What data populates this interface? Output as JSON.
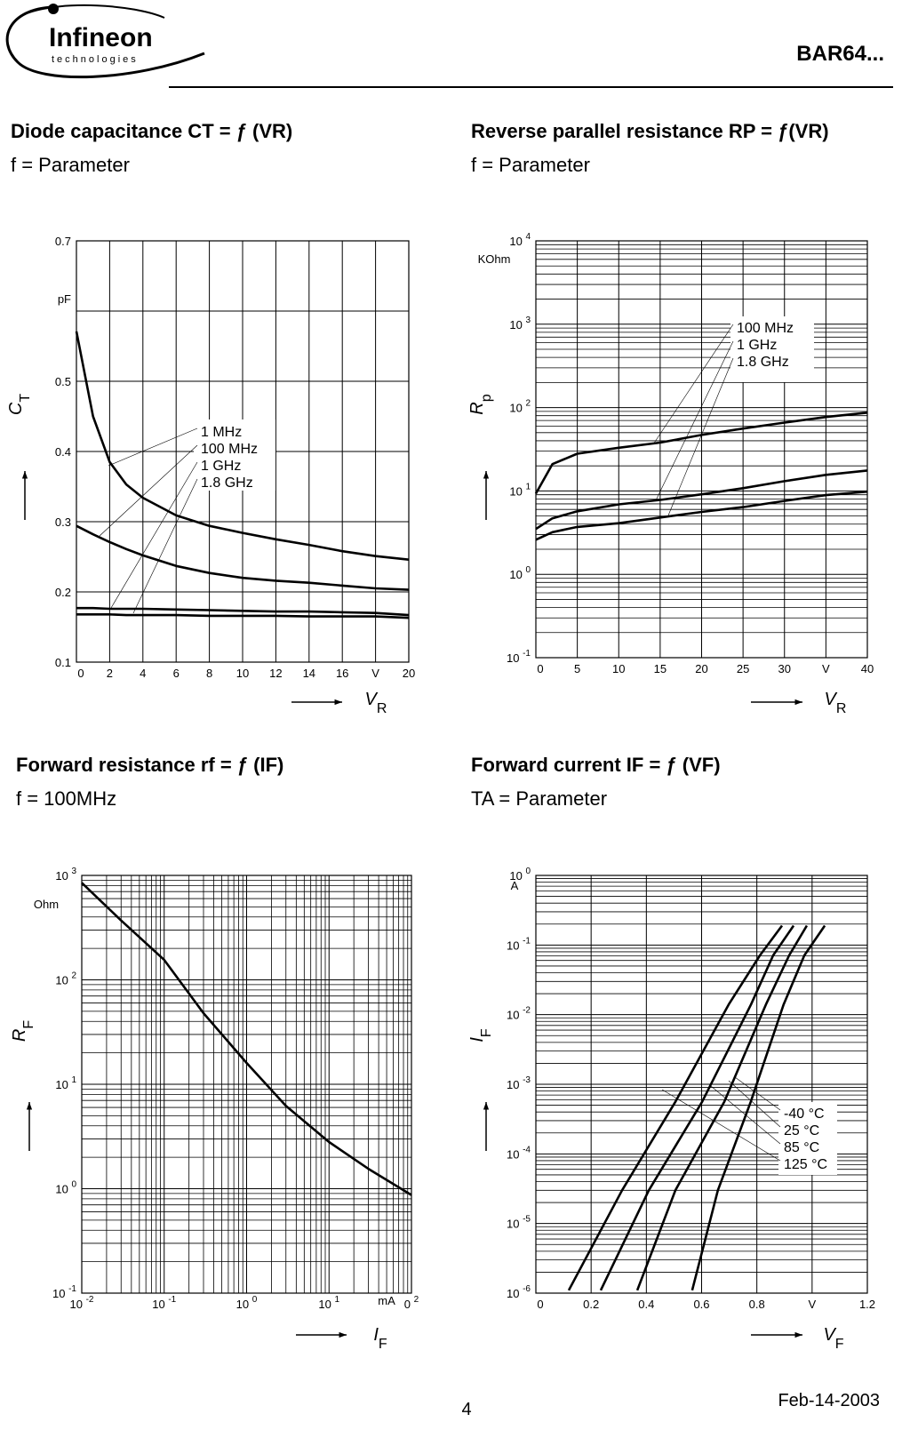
{
  "header": {
    "logo": "Infineon",
    "logo_tagline": "technologies",
    "part": "BAR64..."
  },
  "footer": {
    "page": "4",
    "date": "Feb-14-2003"
  },
  "chart_data": [
    {
      "type": "line",
      "title": "Diode capacitance CT = ƒ (VR)",
      "subtitle": "f = Parameter",
      "x_label": "VR",
      "y_label": "CT",
      "x": [
        0,
        1,
        2,
        3,
        4,
        6,
        8,
        10,
        12,
        14,
        16,
        18,
        20
      ],
      "series": [
        {
          "name": "1 MHz",
          "color": "#000000",
          "values": [
            0.571,
            0.45,
            0.385,
            0.353,
            0.334,
            0.309,
            0.294,
            0.284,
            0.275,
            0.267,
            0.258,
            0.251,
            0.246
          ]
        },
        {
          "name": "100 MHz",
          "color": "#000000",
          "values": [
            0.294,
            0.282,
            0.271,
            0.261,
            0.252,
            0.237,
            0.227,
            0.22,
            0.216,
            0.213,
            0.209,
            0.205,
            0.203
          ]
        },
        {
          "name": "1 GHz",
          "color": "#000000",
          "values": [
            0.177,
            0.177,
            0.176,
            0.176,
            0.176,
            0.175,
            0.174,
            0.173,
            0.172,
            0.172,
            0.171,
            0.17,
            0.167
          ]
        },
        {
          "name": "1.8 GHz",
          "color": "#000000",
          "values": [
            0.168,
            0.168,
            0.168,
            0.167,
            0.167,
            0.167,
            0.166,
            0.166,
            0.166,
            0.165,
            0.165,
            0.165,
            0.163
          ]
        }
      ],
      "xlim": [
        0,
        20
      ],
      "xticks": [
        0,
        2,
        4,
        6,
        8,
        10,
        12,
        14,
        16,
        {
          "value": 18,
          "label": "V"
        },
        20
      ],
      "ylim": [
        0.1,
        0.7
      ],
      "yticks": [
        0.1,
        0.2,
        0.3,
        0.4,
        0.5,
        {
          "value": 0.6,
          "label": "pF"
        },
        0.7
      ],
      "grid": true
    },
    {
      "type": "line",
      "title": "Reverse parallel resistance RP = ƒ(VR)",
      "subtitle": "f = Parameter",
      "x_label": "VR",
      "y_label": "Rp",
      "y_unit": "KOhm",
      "log_y": true,
      "x": [
        0,
        2,
        5,
        10,
        15,
        20,
        25,
        30,
        35,
        40
      ],
      "series": [
        {
          "name": "100 MHz",
          "color": "#000000",
          "values": [
            9.3,
            21,
            28,
            33,
            38,
            47,
            56,
            66,
            77,
            87
          ]
        },
        {
          "name": "1 GHz",
          "color": "#000000",
          "values": [
            3.5,
            4.7,
            5.7,
            6.9,
            7.8,
            9.1,
            10.8,
            13.1,
            15.6,
            17.6
          ]
        },
        {
          "name": "1.8 GHz",
          "color": "#000000",
          "values": [
            2.6,
            3.2,
            3.7,
            4.1,
            4.8,
            5.6,
            6.4,
            7.6,
            8.9,
            9.8
          ]
        }
      ],
      "xlim": [
        0,
        40
      ],
      "xticks": [
        0,
        5,
        10,
        15,
        20,
        25,
        30,
        {
          "value": 35,
          "label": "V"
        },
        40
      ],
      "ylim": [
        0.1,
        10000
      ],
      "yticks": [
        {
          "value": 0.1,
          "label": "10 -1"
        },
        {
          "value": 1,
          "label": "10 0"
        },
        {
          "value": 10,
          "label": "10 1"
        },
        {
          "value": 100,
          "label": "10 2"
        },
        {
          "value": 1000,
          "label": "10 3"
        },
        {
          "value": 10000,
          "label": "10 4"
        }
      ],
      "grid": true
    },
    {
      "type": "line",
      "title": "Forward resistance rf = ƒ (IF)",
      "subtitle": "f = 100MHz",
      "x_label": "IF",
      "y_label": "RF",
      "x_unit": "mA",
      "y_unit": "Ohm",
      "log_x": true,
      "log_y": true,
      "x": [
        0.01,
        0.03,
        0.1,
        0.3,
        1,
        3,
        10,
        30,
        100
      ],
      "values": [
        850,
        370,
        155,
        48,
        16,
        6.2,
        2.8,
        1.55,
        0.87
      ],
      "color": "#000000",
      "xlim": [
        0.01,
        100
      ],
      "xticks": [
        {
          "value": 0.01,
          "label": "10 -2"
        },
        {
          "value": 0.1,
          "label": "10 -1"
        },
        {
          "value": 1,
          "label": "10 0"
        },
        {
          "value": 10,
          "label": "10 1"
        },
        {
          "value": 100,
          "label": "0 2"
        }
      ],
      "ylim": [
        0.1,
        1000
      ],
      "yticks": [
        {
          "value": 0.1,
          "label": "10 -1"
        },
        {
          "value": 1,
          "label": "10 0"
        },
        {
          "value": 10,
          "label": "10 1"
        },
        {
          "value": 100,
          "label": "10 2"
        },
        {
          "value": 1000,
          "label": "10 3"
        }
      ],
      "grid": true
    },
    {
      "type": "line",
      "title": "Forward current IF = ƒ (VF)",
      "subtitle": "TA = Parameter",
      "x_label": "VF",
      "y_label": "IF",
      "y_unit": "A",
      "log_y": true,
      "series": [
        {
          "name": "-40 °C",
          "color": "#000000",
          "x": [
            0.566,
            0.659,
            0.778,
            0.897,
            0.972,
            1.046
          ],
          "values": [
            1.1e-06,
            3e-05,
            0.00056,
            0.014,
            0.071,
            0.19
          ]
        },
        {
          "name": "25 °C",
          "color": "#000000",
          "x": [
            0.367,
            0.505,
            0.682,
            0.833,
            0.917,
            0.981
          ],
          "values": [
            1.1e-06,
            3e-05,
            0.00056,
            0.014,
            0.071,
            0.19
          ]
        },
        {
          "name": "85 °C",
          "color": "#000000",
          "x": [
            0.235,
            0.409,
            0.602,
            0.779,
            0.859,
            0.933
          ],
          "values": [
            1.1e-06,
            3e-05,
            0.00056,
            0.014,
            0.071,
            0.19
          ]
        },
        {
          "name": "125 °C",
          "color": "#000000",
          "x": [
            0.119,
            0.312,
            0.505,
            0.698,
            0.811,
            0.891
          ],
          "values": [
            1.1e-06,
            3e-05,
            0.00056,
            0.014,
            0.071,
            0.19
          ]
        }
      ],
      "xlim": [
        0,
        1.2
      ],
      "xticks": [
        0,
        0.2,
        0.4,
        0.6,
        0.8,
        {
          "value": 1,
          "label": "V"
        },
        1.2
      ],
      "ylim": [
        1e-06,
        1
      ],
      "yticks": [
        {
          "value": 1e-06,
          "label": "10 -6"
        },
        {
          "value": 1e-05,
          "label": "10 -5"
        },
        {
          "value": 0.0001,
          "label": "10 -4"
        },
        {
          "value": 0.001,
          "label": "10 -3"
        },
        {
          "value": 0.01,
          "label": "10 -2"
        },
        {
          "value": 0.1,
          "label": "10 -1"
        },
        {
          "value": 1,
          "label": "10 0"
        }
      ],
      "grid": true
    }
  ]
}
